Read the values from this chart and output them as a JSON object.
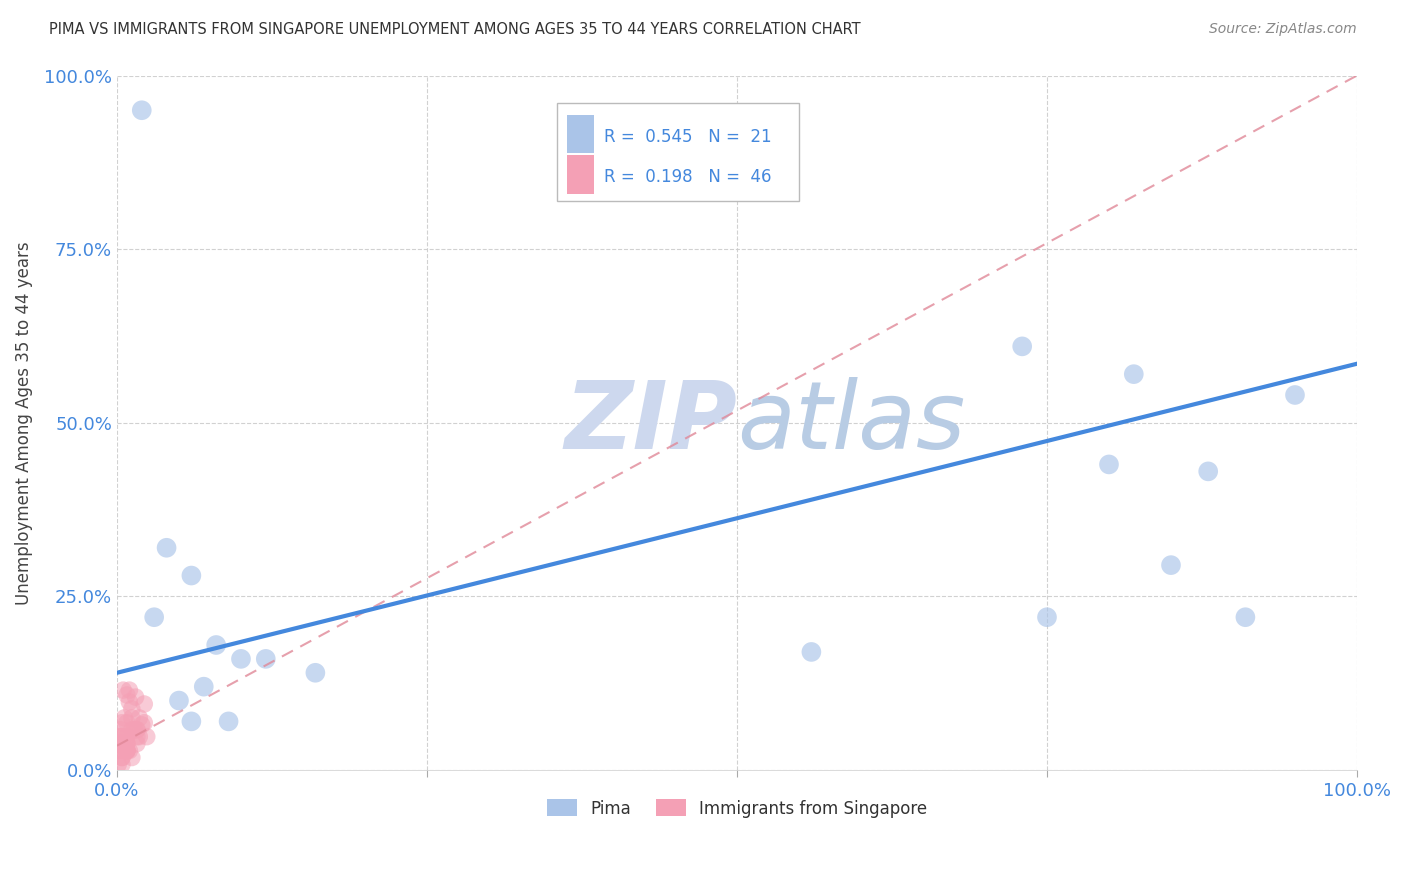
{
  "title": "PIMA VS IMMIGRANTS FROM SINGAPORE UNEMPLOYMENT AMONG AGES 35 TO 44 YEARS CORRELATION CHART",
  "source": "Source: ZipAtlas.com",
  "ylabel_text": "Unemployment Among Ages 35 to 44 years",
  "x_range": [
    0,
    1
  ],
  "y_range": [
    0,
    1
  ],
  "legend_label1": "Pima",
  "legend_label2": "Immigrants from Singapore",
  "R1": "0.545",
  "N1": "21",
  "R2": "0.198",
  "N2": "46",
  "pima_color": "#aac4e8",
  "singapore_color": "#f4a0b5",
  "line1_color": "#4488dd",
  "line2_color": "#e08898",
  "watermark_color": "#cdd8ee",
  "pima_scatter_x": [
    0.02,
    0.04,
    0.06,
    0.1,
    0.16,
    0.73,
    0.8,
    0.82,
    0.88,
    0.91,
    0.95,
    0.08,
    0.03,
    0.12,
    0.07,
    0.05,
    0.75,
    0.85,
    0.56,
    0.06,
    0.09
  ],
  "pima_scatter_y": [
    0.95,
    0.32,
    0.28,
    0.16,
    0.14,
    0.61,
    0.44,
    0.57,
    0.43,
    0.22,
    0.54,
    0.18,
    0.22,
    0.16,
    0.12,
    0.1,
    0.22,
    0.295,
    0.17,
    0.07,
    0.07
  ],
  "singapore_scatter_x": [
    0.005,
    0.008,
    0.01,
    0.012,
    0.015,
    0.018,
    0.02,
    0.022,
    0.01,
    0.014,
    0.018,
    0.022,
    0.006,
    0.003,
    0.008,
    0.016,
    0.024,
    0.008,
    0.012,
    0.016,
    0.004,
    0.008,
    0.012,
    0.004,
    0.008,
    0.004,
    0.016,
    0.008,
    0.003,
    0.012,
    0.004,
    0.001,
    0.01,
    0.004,
    0.008,
    0.016,
    0.004,
    0.001,
    0.008,
    0.004,
    0.001,
    0.004,
    0.008,
    0.004,
    0.001,
    0.004
  ],
  "singapore_scatter_y": [
    0.115,
    0.108,
    0.098,
    0.088,
    0.105,
    0.075,
    0.065,
    0.095,
    0.115,
    0.058,
    0.048,
    0.068,
    0.075,
    0.048,
    0.038,
    0.058,
    0.048,
    0.068,
    0.075,
    0.058,
    0.038,
    0.048,
    0.058,
    0.068,
    0.028,
    0.038,
    0.048,
    0.028,
    0.058,
    0.018,
    0.038,
    0.048,
    0.028,
    0.038,
    0.028,
    0.038,
    0.018,
    0.028,
    0.038,
    0.028,
    0.038,
    0.018,
    0.028,
    0.048,
    0.008,
    0.008
  ],
  "line1_x0": 0.0,
  "line1_x1": 1.0,
  "line1_y0": 0.14,
  "line1_y1": 0.585,
  "line2_x0": 0.0,
  "line2_x1": 1.0,
  "line2_y0": 0.035,
  "line2_y1": 1.0
}
